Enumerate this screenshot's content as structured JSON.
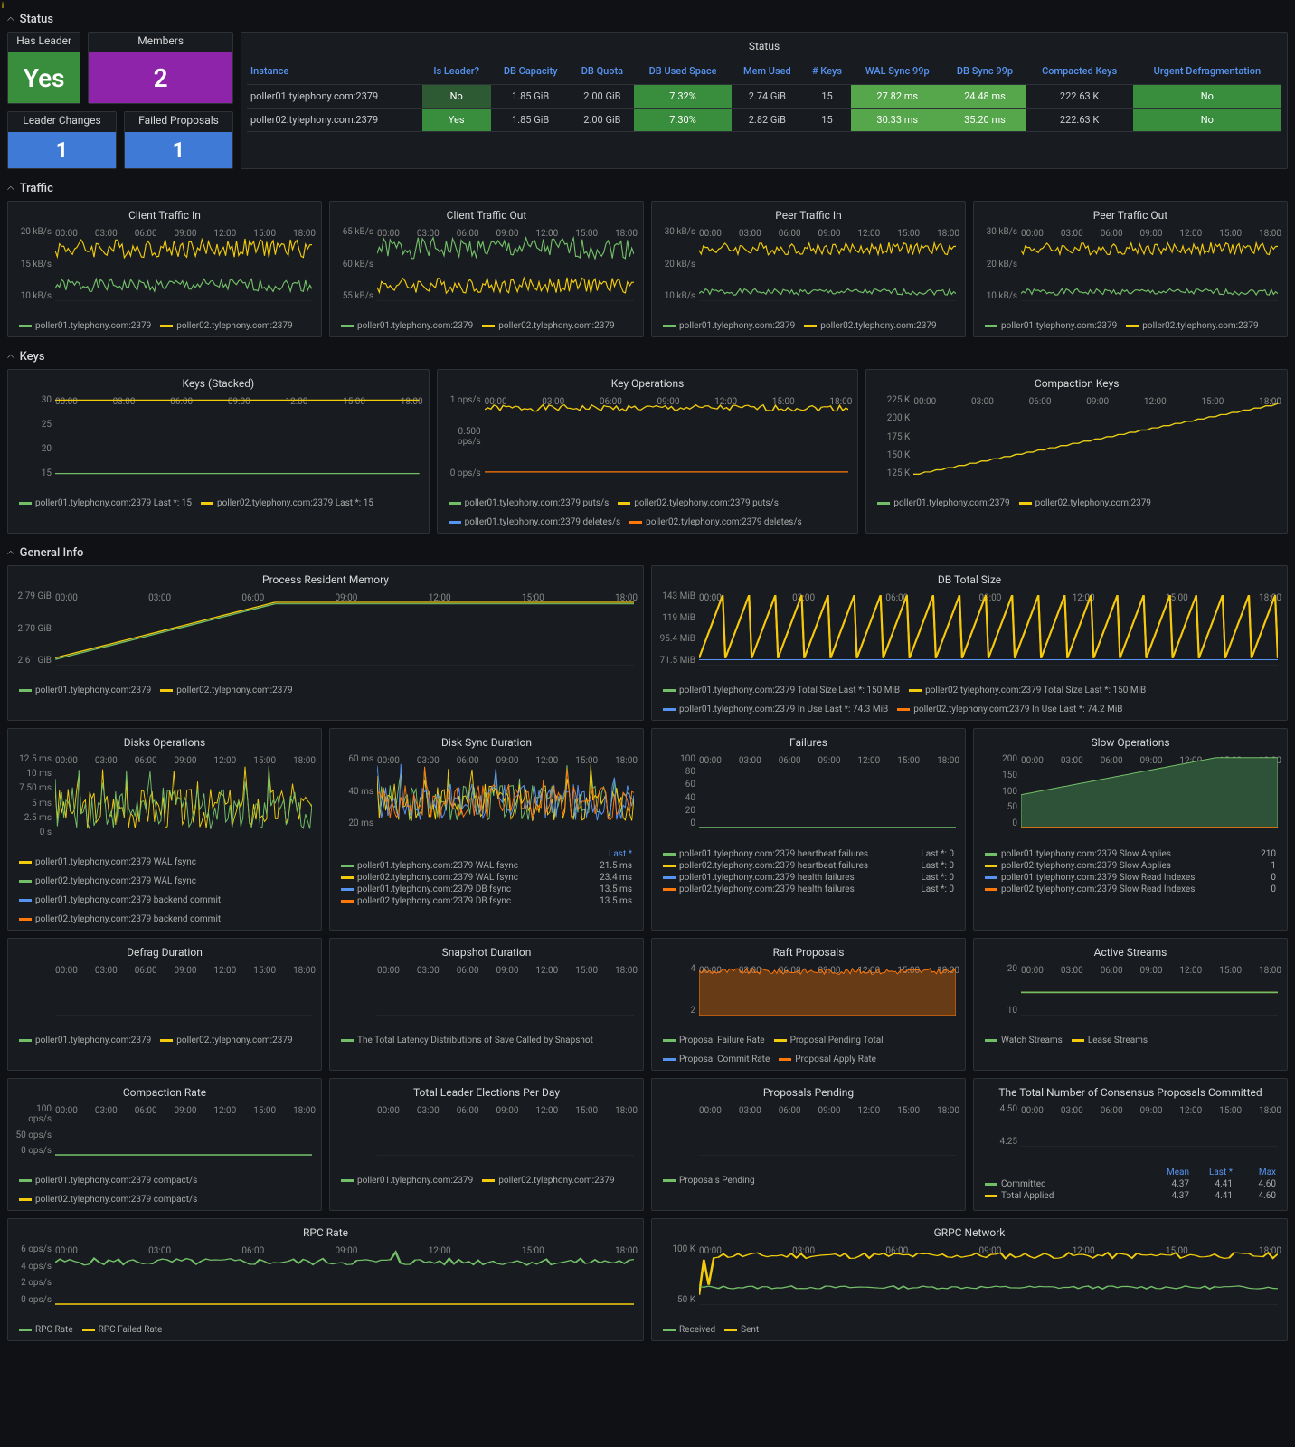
{
  "sections": {
    "status": "Status",
    "traffic": "Traffic",
    "keys": "Keys",
    "general": "General Info"
  },
  "status": {
    "has_leader": {
      "title": "Has Leader",
      "value": "Yes",
      "bg": "#388e3c"
    },
    "members": {
      "title": "Members",
      "value": "2",
      "bg": "#8e24aa"
    },
    "leader_changes": {
      "title": "Leader Changes",
      "value": "1",
      "bg": "#3f7bd6"
    },
    "failed_proposals": {
      "title": "Failed Proposals",
      "value": "1",
      "bg": "#3f7bd6"
    },
    "table": {
      "title": "Status",
      "columns": [
        "Instance",
        "Is Leader?",
        "DB Capacity",
        "DB Quota",
        "DB Used Space",
        "Mem Used",
        "# Keys",
        "WAL Sync 99p",
        "DB Sync 99p",
        "Compacted Keys",
        "Urgent Defragmentation"
      ],
      "rows": [
        [
          "poller01.tylephony.com:2379",
          "No",
          "1.85 GiB",
          "2.00 GiB",
          "7.32%",
          "2.74 GiB",
          "15",
          "27.82 ms",
          "24.48 ms",
          "222.63 K",
          "No"
        ],
        [
          "poller02.tylephony.com:2379",
          "Yes",
          "1.85 GiB",
          "2.00 GiB",
          "7.30%",
          "2.82 GiB",
          "15",
          "30.33 ms",
          "35.20 ms",
          "222.63 K",
          "No"
        ]
      ],
      "cell_colors": {
        "1": {
          "No": "#c4162a",
          "Yes": "#388e3c",
          "_bg": "#2e5a33"
        },
        "4": "#388e3c",
        "7": "#56a64b",
        "8": "#56a64b",
        "10": "#388e3c"
      }
    }
  },
  "colors": {
    "green": "#73bf69",
    "yellow": "#f2cc0c",
    "blue": "#5794f2",
    "orange": "#ff780a",
    "red": "#f2495c",
    "grid": "#2c3235"
  },
  "x_ticks": [
    "00:00",
    "03:00",
    "06:00",
    "09:00",
    "12:00",
    "15:00",
    "18:00"
  ],
  "traffic": {
    "in": {
      "title": "Client Traffic In",
      "y": [
        "20 kB/s",
        "15 kB/s",
        "10 kB/s"
      ],
      "series": [
        {
          "color": "#73bf69",
          "mean": 11,
          "jitter": 1.2
        },
        {
          "color": "#f2cc0c",
          "mean": 18,
          "jitter": 1.8
        }
      ],
      "ylim": [
        8,
        22
      ]
    },
    "out": {
      "title": "Client Traffic Out",
      "y": [
        "65 kB/s",
        "60 kB/s",
        "55 kB/s"
      ],
      "series": [
        {
          "color": "#73bf69",
          "mean": 62,
          "jitter": 2
        },
        {
          "color": "#f2cc0c",
          "mean": 55,
          "jitter": 1.5
        }
      ],
      "ylim": [
        52,
        66
      ]
    },
    "pin": {
      "title": "Peer Traffic In",
      "y": [
        "30 kB/s",
        "20 kB/s",
        "10 kB/s"
      ],
      "series": [
        {
          "color": "#73bf69",
          "mean": 11,
          "jitter": 1
        },
        {
          "color": "#f2cc0c",
          "mean": 25,
          "jitter": 2
        }
      ],
      "ylim": [
        8,
        32
      ]
    },
    "pout": {
      "title": "Peer Traffic Out",
      "y": [
        "30 kB/s",
        "20 kB/s",
        "10 kB/s"
      ],
      "series": [
        {
          "color": "#73bf69",
          "mean": 11,
          "jitter": 1
        },
        {
          "color": "#f2cc0c",
          "mean": 25,
          "jitter": 2
        }
      ],
      "ylim": [
        8,
        32
      ]
    }
  },
  "traffic_legend": [
    "poller01.tylephony.com:2379",
    "poller02.tylephony.com:2379"
  ],
  "keys": {
    "stacked": {
      "title": "Keys (Stacked)",
      "y": [
        "30",
        "25",
        "20",
        "15"
      ],
      "series": [
        {
          "color": "#73bf69",
          "mean": 15,
          "jitter": 0
        },
        {
          "color": "#f2cc0c",
          "mean": 30,
          "jitter": 0
        }
      ],
      "ylim": [
        14,
        31
      ],
      "legend": [
        "poller01.tylephony.com:2379  Last *: 15",
        "poller02.tylephony.com:2379  Last *: 15"
      ]
    },
    "ops": {
      "title": "Key Operations",
      "y": [
        "1 ops/s",
        "0.500 ops/s",
        "0 ops/s"
      ],
      "series": [
        {
          "color": "#f2cc0c",
          "mean": 1,
          "jitter": 0.05
        },
        {
          "color": "#ff780a",
          "mean": 0,
          "jitter": 0
        }
      ],
      "ylim": [
        -0.1,
        1.2
      ],
      "legend": [
        "poller01.tylephony.com:2379 puts/s",
        "poller02.tylephony.com:2379 puts/s",
        "poller01.tylephony.com:2379 deletes/s",
        "poller02.tylephony.com:2379 deletes/s"
      ],
      "legend_colors": [
        "#73bf69",
        "#f2cc0c",
        "#5794f2",
        "#ff780a"
      ]
    },
    "compact": {
      "title": "Compaction Keys",
      "y": [
        "225 K",
        "200 K",
        "175 K",
        "150 K",
        "125 K"
      ],
      "ylim": [
        120,
        230
      ],
      "type": "steps",
      "legend": [
        "poller01.tylephony.com:2379",
        "poller02.tylephony.com:2379"
      ]
    }
  },
  "general": {
    "memory": {
      "title": "Process Resident Memory",
      "y": [
        "2.79 GiB",
        "2.70 GiB",
        "2.61 GiB"
      ],
      "ylim": [
        2.6,
        2.84
      ],
      "type": "rise",
      "legend": [
        "poller01.tylephony.com:2379",
        "poller02.tylephony.com:2379"
      ]
    },
    "dbsize": {
      "title": "DB Total Size",
      "y": [
        "143 MiB",
        "119 MiB",
        "95.4 MiB",
        "71.5 MiB"
      ],
      "ylim": [
        70,
        148
      ],
      "type": "sawtooth",
      "legend": [
        "poller01.tylephony.com:2379 Total Size  Last *: 150 MiB",
        "poller02.tylephony.com:2379 Total Size  Last *: 150 MiB",
        "poller01.tylephony.com:2379 In Use  Last *: 74.3 MiB",
        "poller02.tylephony.com:2379 In Use  Last *: 74.2 MiB"
      ],
      "legend_colors": [
        "#73bf69",
        "#f2cc0c",
        "#5794f2",
        "#ff780a"
      ]
    },
    "disk_ops": {
      "title": "Disks Operations",
      "y": [
        "12.5 ms",
        "10 ms",
        "7.50 ms",
        "5 ms",
        "2.5 ms",
        "0 s"
      ],
      "ylim": [
        0,
        13
      ],
      "type": "noisy",
      "legend": [
        "poller01.tylephony.com:2379 WAL fsync",
        "poller02.tylephony.com:2379 WAL fsync",
        "poller01.tylephony.com:2379 backend commit",
        "poller02.tylephony.com:2379 backend commit"
      ],
      "legend_colors": [
        "#f2cc0c",
        "#73bf69",
        "#5794f2",
        "#ff780a"
      ]
    },
    "disk_sync": {
      "title": "Disk Sync Duration",
      "y": [
        "60 ms",
        "40 ms",
        "20 ms"
      ],
      "ylim": [
        0,
        65
      ],
      "type": "noisy4",
      "last_header": "Last *",
      "rows": [
        [
          "poller01.tylephony.com:2379 WAL fsync",
          "21.5 ms"
        ],
        [
          "poller02.tylephony.com:2379 WAL fsync",
          "23.4 ms"
        ],
        [
          "poller01.tylephony.com:2379 DB fsync",
          "13.5 ms"
        ],
        [
          "poller02.tylephony.com:2379 DB fsync",
          "13.5 ms"
        ]
      ],
      "legend_colors": [
        "#73bf69",
        "#f2cc0c",
        "#5794f2",
        "#ff780a"
      ]
    },
    "failures": {
      "title": "Failures",
      "y": [
        "100",
        "80",
        "60",
        "40",
        "20",
        "0"
      ],
      "ylim": [
        0,
        100
      ],
      "type": "flat0",
      "rows": [
        [
          "poller01.tylephony.com:2379 heartbeat failures",
          "Last *: 0"
        ],
        [
          "poller02.tylephony.com:2379 heartbeat failures",
          "Last *: 0"
        ],
        [
          "poller01.tylephony.com:2379 health failures",
          "Last *: 0"
        ],
        [
          "poller02.tylephony.com:2379 health failures",
          "Last *: 0"
        ]
      ],
      "legend_colors": [
        "#73bf69",
        "#f2cc0c",
        "#5794f2",
        "#ff780a"
      ]
    },
    "slow": {
      "title": "Slow Operations",
      "y": [
        "200",
        "150",
        "100",
        "50",
        "0"
      ],
      "ylim": [
        0,
        220
      ],
      "type": "rise_one",
      "rows": [
        [
          "poller01.tylephony.com:2379 Slow Applies",
          "210"
        ],
        [
          "poller02.tylephony.com:2379 Slow Applies",
          "1"
        ],
        [
          "poller01.tylephony.com:2379 Slow Read Indexes",
          "0"
        ],
        [
          "poller02.tylephony.com:2379 Slow Read Indexes",
          "0"
        ]
      ],
      "legend_colors": [
        "#73bf69",
        "#f2cc0c",
        "#5794f2",
        "#ff780a"
      ]
    },
    "defrag": {
      "title": "Defrag Duration",
      "y": [],
      "type": "empty",
      "legend": [
        "poller01.tylephony.com:2379",
        "poller02.tylephony.com:2379"
      ]
    },
    "snapshot": {
      "title": "Snapshot Duration",
      "y": [],
      "type": "empty",
      "marker": "i",
      "legend": [
        "The Total Latency Distributions of Save Called by Snapshot"
      ]
    },
    "raft": {
      "title": "Raft Proposals",
      "y": [
        "4",
        "2"
      ],
      "ylim": [
        0,
        5
      ],
      "type": "area4",
      "marker": "i",
      "legend": [
        "Proposal Failure Rate",
        "Proposal Pending Total",
        "Proposal Commit Rate",
        "Proposal Apply Rate"
      ],
      "legend_colors": [
        "#73bf69",
        "#f2cc0c",
        "#5794f2",
        "#ff780a"
      ]
    },
    "streams": {
      "title": "Active Streams",
      "y": [
        "20",
        "10"
      ],
      "ylim": [
        0,
        25
      ],
      "type": "flat10",
      "legend": [
        "Watch Streams",
        "Lease Streams"
      ]
    },
    "compactrate": {
      "title": "Compaction Rate",
      "y": [
        "100 ops/s",
        "50 ops/s",
        "0 ops/s"
      ],
      "ylim": [
        0,
        100
      ],
      "type": "flat0",
      "legend": [
        "poller01.tylephony.com:2379 compact/s",
        "poller02.tylephony.com:2379 compact/s"
      ]
    },
    "elections": {
      "title": "Total Leader Elections Per Day",
      "y": [],
      "type": "empty",
      "legend": [
        "poller01.tylephony.com:2379",
        "poller02.tylephony.com:2379"
      ]
    },
    "pending": {
      "title": "Proposals Pending",
      "y": [],
      "type": "empty",
      "marker": "i",
      "legend": [
        "Proposals Pending"
      ]
    },
    "consensus": {
      "title": "The Total Number of Consensus Proposals Committed",
      "y": [
        "4.50",
        "4.25"
      ],
      "ylim": [
        4.1,
        4.7
      ],
      "type": "noisy",
      "marker": "i",
      "header": [
        "Mean",
        "Last *",
        "Max"
      ],
      "rows": [
        [
          "Committed",
          "4.37",
          "4.41",
          "4.60"
        ],
        [
          "Total Applied",
          "4.37",
          "4.41",
          "4.60"
        ]
      ],
      "legend_colors": [
        "#73bf69",
        "#f2cc0c"
      ]
    },
    "rpc": {
      "title": "RPC Rate",
      "y": [
        "6 ops/s",
        "4 ops/s",
        "2 ops/s",
        "0 ops/s"
      ],
      "ylim": [
        0,
        7
      ],
      "type": "flat5",
      "legend": [
        "RPC Rate",
        "RPC Failed Rate"
      ]
    },
    "grpc": {
      "title": "GRPC Network",
      "y": [
        "100 K",
        "50 K"
      ],
      "ylim": [
        0,
        120
      ],
      "type": "grpc",
      "legend": [
        "Received",
        "Sent"
      ]
    }
  }
}
